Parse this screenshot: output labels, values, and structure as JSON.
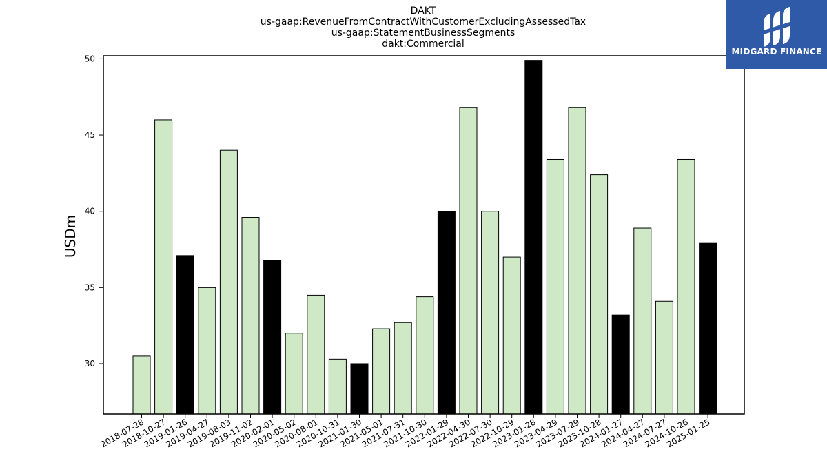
{
  "chart_data": {
    "type": "bar",
    "title_lines": [
      "DAKT",
      "us-gaap:RevenueFromContractWithCustomerExcludingAssessedTax",
      "us-gaap:StatementBusinessSegments",
      "dakt:Commercial"
    ],
    "xlabel": "",
    "ylabel": "USDm",
    "ylim": [
      26.7,
      50.2
    ],
    "yticks": [
      30,
      35,
      40,
      45,
      50
    ],
    "grid": false,
    "categories": [
      "2018-07-28",
      "2018-10-27",
      "2019-01-26",
      "2019-04-27",
      "2019-08-03",
      "2019-11-02",
      "2020-02-01",
      "2020-05-02",
      "2020-08-01",
      "2020-10-31",
      "2021-01-30",
      "2021-05-01",
      "2021-07-31",
      "2021-10-30",
      "2022-01-29",
      "2022-04-30",
      "2022-07-30",
      "2022-10-29",
      "2023-01-28",
      "2023-04-29",
      "2023-07-29",
      "2023-10-28",
      "2024-01-27",
      "2024-04-27",
      "2024-07-27",
      "2024-10-26",
      "2025-01-25"
    ],
    "values": [
      30.5,
      46.0,
      37.1,
      35.0,
      44.0,
      39.6,
      36.8,
      32.0,
      34.5,
      30.3,
      30.0,
      32.3,
      32.7,
      34.4,
      40.0,
      46.8,
      40.0,
      37.0,
      49.9,
      43.4,
      46.8,
      42.4,
      33.2,
      38.9,
      34.1,
      43.4,
      37.9
    ],
    "highlight": [
      false,
      false,
      true,
      false,
      false,
      false,
      true,
      false,
      false,
      false,
      true,
      false,
      false,
      false,
      true,
      false,
      false,
      false,
      true,
      false,
      false,
      false,
      true,
      false,
      false,
      false,
      true
    ],
    "colors": {
      "normal": "#cfe9c7",
      "highlight": "#000000",
      "edge": "#000000"
    }
  },
  "logo": {
    "text": "MIDGARD FINANCE",
    "background": "#2f5aa8"
  }
}
